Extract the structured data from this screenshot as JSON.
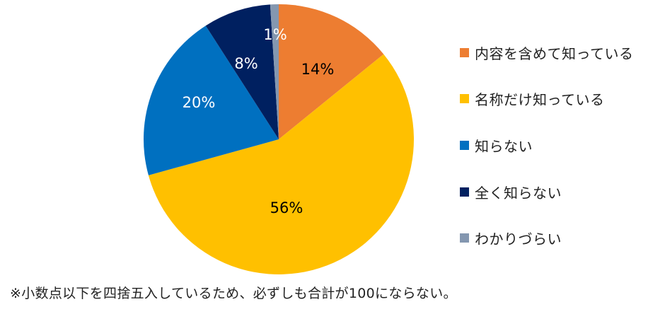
{
  "chart_data": {
    "type": "pie",
    "title": "",
    "categories": [
      "内容を含めて知っている",
      "名称だけ知っている",
      "知らない",
      "全く知らない",
      "わかりづらい"
    ],
    "values": [
      14,
      56,
      20,
      8,
      1
    ],
    "labels": [
      "14%",
      "56%",
      "20%",
      "8%",
      "1%"
    ],
    "colors": [
      "#ED7D31",
      "#FFC000",
      "#0070C0",
      "#002060",
      "#8497B0"
    ],
    "label_colors": [
      "#000000",
      "#000000",
      "#ffffff",
      "#ffffff",
      "#ffffff"
    ],
    "start_angle": "12 o'clock",
    "direction": "clockwise",
    "legend_position": "right",
    "note": "※小数点以下を四捨五入しているため、必ずしも合計が100にならない。"
  },
  "legend": {
    "items": [
      {
        "label": "内容を含めて知っている",
        "color": "#ED7D31"
      },
      {
        "label": "名称だけ知っている",
        "color": "#FFC000"
      },
      {
        "label": "知らない",
        "color": "#0070C0"
      },
      {
        "label": "全く知らない",
        "color": "#002060"
      },
      {
        "label": "わかりづらい",
        "color": "#8497B0"
      }
    ]
  },
  "footnote": "※小数点以下を四捨五入しているため、必ずしも合計が100にならない。"
}
